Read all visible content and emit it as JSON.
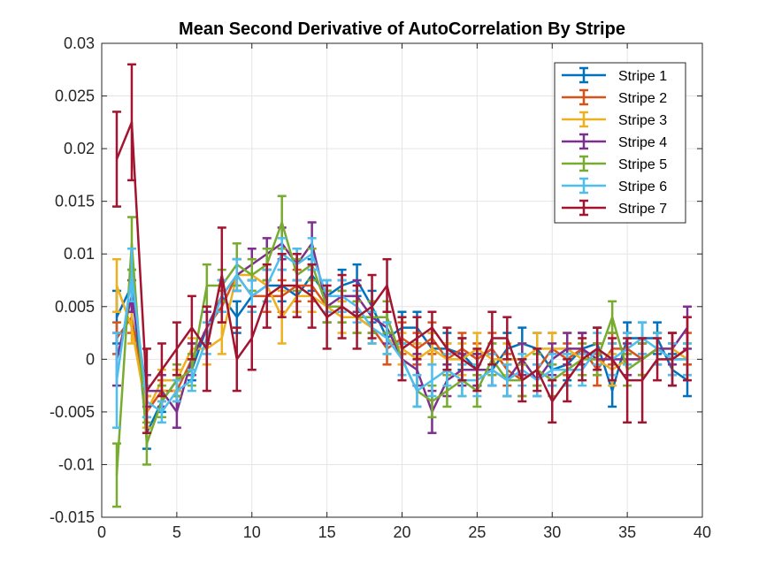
{
  "chart_data": {
    "type": "line",
    "title": "Mean Second Derivative of AutoCorrelation By Stripe",
    "xlabel": "",
    "ylabel": "",
    "xlim": [
      0,
      40
    ],
    "ylim": [
      -0.015,
      0.03
    ],
    "xticks": [
      0,
      5,
      10,
      15,
      20,
      25,
      30,
      35,
      40
    ],
    "yticks": [
      -0.015,
      -0.01,
      -0.005,
      0,
      0.005,
      0.01,
      0.015,
      0.02,
      0.025,
      0.03
    ],
    "xtick_labels": [
      "0",
      "5",
      "10",
      "15",
      "20",
      "25",
      "30",
      "35",
      "40"
    ],
    "ytick_labels": [
      "-0.015",
      "-0.01",
      "-0.005",
      "0",
      "0.005",
      "0.01",
      "0.015",
      "0.02",
      "0.025",
      "0.03"
    ],
    "grid": true,
    "legend_position": "top-right",
    "x": [
      1,
      2,
      3,
      4,
      5,
      6,
      7,
      8,
      9,
      10,
      11,
      12,
      13,
      14,
      15,
      16,
      17,
      18,
      19,
      20,
      21,
      22,
      23,
      24,
      25,
      26,
      27,
      28,
      29,
      30,
      31,
      32,
      33,
      34,
      35,
      36,
      37,
      38,
      39
    ],
    "series": [
      {
        "name": "Stripe 1",
        "color": "#0072BD",
        "values": [
          0.004,
          0.007,
          -0.007,
          -0.004,
          -0.002,
          -0.001,
          0.003,
          0.006,
          0.004,
          0.006,
          0.007,
          0.007,
          0.006,
          0.008,
          0.006,
          0.007,
          0.0075,
          0.005,
          0.002,
          0.003,
          0.003,
          0.001,
          0.001,
          0.0005,
          -0.001,
          -0.001,
          0.001,
          0.0015,
          0.001,
          -0.001,
          -0.0005,
          0.001,
          0.0015,
          -0.003,
          0.002,
          0.002,
          0.002,
          -0.001,
          -0.002
        ],
        "errors": [
          0.0025,
          0.0015,
          0.0015,
          0.001,
          0.001,
          0.001,
          0.0015,
          0.0015,
          0.0015,
          0.0015,
          0.0015,
          0.0015,
          0.0015,
          0.0015,
          0.0015,
          0.0015,
          0.0015,
          0.0015,
          0.0015,
          0.0015,
          0.0015,
          0.0015,
          0.0015,
          0.0015,
          0.0015,
          0.0015,
          0.0015,
          0.0015,
          0.0015,
          0.0015,
          0.0015,
          0.0015,
          0.0015,
          0.0015,
          0.0015,
          0.0015,
          0.0015,
          0.0015,
          0.0015
        ]
      },
      {
        "name": "Stripe 2",
        "color": "#D95319",
        "values": [
          0.002,
          0.004,
          -0.005,
          -0.003,
          -0.003,
          0.0,
          0.003,
          0.005,
          0.008,
          0.006,
          0.006,
          0.006,
          0.007,
          0.007,
          0.005,
          0.005,
          0.004,
          0.003,
          0.001,
          0.002,
          0.001,
          0.002,
          0.0,
          0.001,
          0.0,
          0.001,
          -0.001,
          -0.002,
          -0.001,
          0.001,
          0.0,
          0.001,
          -0.001,
          0.001,
          0.001,
          0.0,
          0.001,
          0.0,
          0.001
        ],
        "errors": [
          0.0015,
          0.0015,
          0.0015,
          0.001,
          0.001,
          0.0015,
          0.0015,
          0.0015,
          0.0015,
          0.0015,
          0.0015,
          0.0015,
          0.0015,
          0.0015,
          0.0015,
          0.0015,
          0.0015,
          0.0015,
          0.0015,
          0.0015,
          0.0015,
          0.0015,
          0.0015,
          0.0015,
          0.0015,
          0.0015,
          0.0015,
          0.0015,
          0.0015,
          0.0015,
          0.0015,
          0.0015,
          0.0015,
          0.0015,
          0.0015,
          0.0015,
          0.0015,
          0.0015,
          0.0015
        ]
      },
      {
        "name": "Stripe 3",
        "color": "#EDB120",
        "values": [
          0.007,
          0.003,
          -0.005,
          -0.002,
          -0.002,
          0.001,
          0.001,
          0.002,
          0.008,
          0.008,
          0.007,
          0.004,
          0.006,
          0.006,
          0.005,
          0.004,
          0.004,
          0.003,
          0.002,
          0.001,
          0.0,
          0.001,
          0.0,
          0.0,
          0.001,
          0.0,
          0.0,
          0.0,
          0.001,
          0.001,
          0.001,
          0.0,
          0.0,
          -0.001,
          0.0,
          0.0,
          0.001,
          0.001,
          0.0
        ],
        "errors": [
          0.0025,
          0.0015,
          0.0015,
          0.001,
          0.001,
          0.001,
          0.0015,
          0.0015,
          0.0015,
          0.0015,
          0.0015,
          0.0025,
          0.0015,
          0.0015,
          0.0015,
          0.0015,
          0.0015,
          0.0015,
          0.0015,
          0.0015,
          0.0015,
          0.0015,
          0.0015,
          0.0015,
          0.0015,
          0.0015,
          0.0015,
          0.0015,
          0.0015,
          0.0015,
          0.0015,
          0.0015,
          0.0015,
          0.0015,
          0.0015,
          0.0015,
          0.0015,
          0.0015,
          0.0015
        ]
      },
      {
        "name": "Stripe 4",
        "color": "#7E2F8E",
        "values": [
          0.0,
          0.006,
          -0.003,
          -0.003,
          -0.005,
          0.0,
          0.003,
          0.006,
          0.008,
          0.009,
          0.01,
          0.011,
          0.009,
          0.011,
          0.005,
          0.006,
          0.006,
          0.004,
          0.003,
          0.0,
          -0.001,
          -0.005,
          -0.002,
          -0.001,
          -0.001,
          -0.001,
          -0.002,
          0.0,
          -0.002,
          0.0,
          0.001,
          0.001,
          0.0,
          0.0,
          0.0,
          0.0,
          0.001,
          0.001,
          0.003
        ],
        "errors": [
          0.0025,
          0.0015,
          0.0015,
          0.0015,
          0.0015,
          0.0015,
          0.0015,
          0.0015,
          0.0015,
          0.0015,
          0.0015,
          0.0015,
          0.0015,
          0.002,
          0.0015,
          0.0015,
          0.0015,
          0.0015,
          0.0015,
          0.0015,
          0.0015,
          0.002,
          0.0015,
          0.0015,
          0.0015,
          0.0015,
          0.0015,
          0.0015,
          0.0015,
          0.0015,
          0.0015,
          0.0015,
          0.0015,
          0.0015,
          0.0015,
          0.0015,
          0.0015,
          0.0015,
          0.002
        ]
      },
      {
        "name": "Stripe 5",
        "color": "#77AC30",
        "values": [
          -0.011,
          0.011,
          -0.008,
          -0.004,
          -0.002,
          -0.001,
          0.007,
          0.007,
          0.009,
          0.008,
          0.009,
          0.013,
          0.008,
          0.009,
          0.005,
          0.005,
          0.004,
          0.004,
          0.004,
          0.0,
          -0.003,
          -0.004,
          -0.003,
          -0.002,
          -0.003,
          0.0,
          -0.002,
          -0.002,
          -0.001,
          -0.002,
          -0.001,
          0.0,
          0.0,
          0.004,
          -0.001,
          0.0,
          0.001,
          0.0,
          0.0
        ],
        "errors": [
          0.003,
          0.0025,
          0.002,
          0.0015,
          0.0015,
          0.0015,
          0.002,
          0.0015,
          0.002,
          0.0015,
          0.0015,
          0.0025,
          0.0015,
          0.0015,
          0.0015,
          0.0015,
          0.0015,
          0.0015,
          0.0015,
          0.0015,
          0.0015,
          0.0015,
          0.0015,
          0.0015,
          0.0015,
          0.0015,
          0.0015,
          0.0015,
          0.0015,
          0.0015,
          0.0015,
          0.0015,
          0.0015,
          0.0015,
          0.0015,
          0.0015,
          0.0015,
          0.0015,
          0.0015
        ]
      },
      {
        "name": "Stripe 6",
        "color": "#4DBEEE",
        "values": [
          -0.002,
          0.008,
          -0.004,
          -0.005,
          -0.003,
          -0.002,
          0.002,
          0.006,
          0.008,
          0.006,
          0.007,
          0.01,
          0.009,
          0.01,
          0.006,
          0.006,
          0.005,
          0.003,
          0.002,
          0.0,
          -0.003,
          -0.002,
          -0.001,
          -0.002,
          -0.002,
          -0.001,
          -0.002,
          -0.001,
          -0.002,
          -0.001,
          -0.001,
          -0.001,
          0.001,
          0.0,
          0.001,
          0.002,
          0.001,
          0.0,
          0.0
        ],
        "errors": [
          0.0045,
          0.0025,
          0.0015,
          0.001,
          0.001,
          0.001,
          0.0015,
          0.0015,
          0.0015,
          0.0015,
          0.0015,
          0.0015,
          0.0015,
          0.0015,
          0.0015,
          0.0015,
          0.0015,
          0.0015,
          0.0015,
          0.0015,
          0.0015,
          0.0015,
          0.0015,
          0.0015,
          0.0015,
          0.0015,
          0.0015,
          0.0015,
          0.0015,
          0.0015,
          0.0015,
          0.0015,
          0.0015,
          0.0015,
          0.0015,
          0.0015,
          0.0015,
          0.0015,
          0.0015
        ]
      },
      {
        "name": "Stripe 7",
        "color": "#A2142F",
        "values": [
          0.019,
          0.0225,
          -0.003,
          -0.001,
          0.001,
          0.003,
          0.001,
          0.008,
          0.0,
          0.002,
          0.006,
          0.007,
          0.007,
          0.006,
          0.004,
          0.005,
          0.004,
          0.005,
          0.007,
          0.001,
          0.002,
          0.003,
          0.001,
          0.0,
          -0.001,
          0.002,
          0.002,
          -0.002,
          -0.001,
          -0.004,
          -0.002,
          0.0,
          0.001,
          0.0,
          -0.002,
          -0.002,
          0.0,
          0.0,
          0.001
        ],
        "errors": [
          0.0045,
          0.0055,
          0.004,
          0.0025,
          0.0025,
          0.003,
          0.004,
          0.0045,
          0.003,
          0.003,
          0.003,
          0.003,
          0.003,
          0.003,
          0.003,
          0.003,
          0.003,
          0.003,
          0.0025,
          0.003,
          0.002,
          0.0015,
          0.002,
          0.002,
          0.002,
          0.0025,
          0.002,
          0.002,
          0.002,
          0.002,
          0.002,
          0.002,
          0.002,
          0.002,
          0.004,
          0.004,
          0.002,
          0.0025,
          0.003
        ]
      }
    ]
  }
}
